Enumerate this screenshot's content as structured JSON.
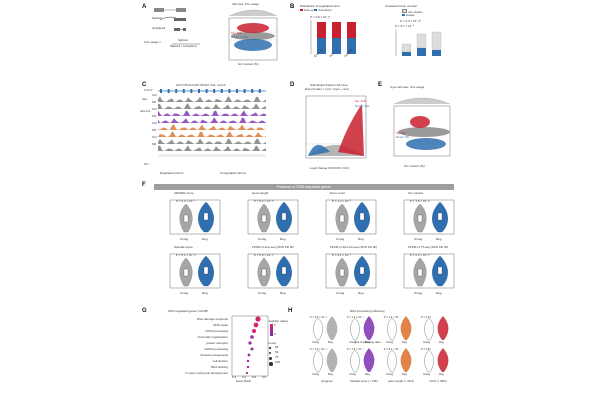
{
  "panels": {
    "a": "A",
    "b": "B",
    "c": "C",
    "d": "D",
    "e": "E",
    "f": "F",
    "g": "G",
    "h": "H"
  },
  "panel_a": {
    "spliced": "Spliced",
    "unspliced": "Unspliced",
    "usage_label": "3'ss usage =",
    "numerator": "Spliced",
    "denominator": "Spliced + Unspliced",
    "scatter_title": "4sU seq: 3'ss usage",
    "up": "Up: 709",
    "down": "Down: 1,079",
    "xlabel": "GC content (%)",
    "ylabel": "Log2 change (SON KD/Ctrl)"
  },
  "panel_b": {
    "title_left": "Distribution of regulated intron",
    "title_right": "Clustered intron number",
    "legend_up": "3'ss-up",
    "legend_down": "3'ss-down",
    "legend_cluster": "non-cluster",
    "legend_cluster2": "cluster",
    "p_left": "P = 4.8 × 10⁻²³",
    "p_right1": "P = 3.7 × 10⁻⁹",
    "p_right2": "P = 3.3 × 10⁻¹²⁰",
    "ylabel_left": "Ratio of SON regulated introns (%)",
    "ylabel_right": "Number of introns",
    "x1": "Exon ss",
    "x2": "4sU",
    "x3": "4sU-KA",
    "ticks_left": [
      "0",
      "50",
      "100"
    ],
    "ticks_right": [
      "0",
      "2,000",
      "4,000",
      "6,000"
    ]
  },
  "panel_c": {
    "locus": "chr17:56,613,607-56,627,141, mm10",
    "gene": "Lrrc17",
    "tracks": [
      "Ctrl",
      "KD",
      "Ctrl",
      "KD",
      "Ctrl",
      "KD",
      "Ctrl",
      "KD"
    ],
    "group1": "4sU",
    "group2": "4sU-KA",
    "gc_row": "GC",
    "x_left": "Regulated introns",
    "x_right": "Unregulated introns",
    "ticks": [
      "17",
      "16",
      "15"
    ]
  },
  "panel_d": {
    "title": "Subcellular fraction 4sU-seq",
    "subtitle": "Export index = cyto / (cyto + nuc)",
    "up": "Up: 418",
    "down": "Down: 120",
    "xlabel": "Log2 change (SON KD / Ctrl)",
    "ylabel": "-Log10 P value"
  },
  "panel_e": {
    "title": "Cyto-4sU-seq, 3'ss usage",
    "up": "Up: 52",
    "down": "Down: 99",
    "xlabel": "GC content (%)",
    "ylabel": "Log2 change (SON KD/Ctrl)"
  },
  "panel_f": {
    "banner": "Features of SON-regulated genes",
    "plots": [
      {
        "title": "CRISPR score",
        "p": "P = 5.3 × 10⁻⁹"
      },
      {
        "title": "Gene length",
        "p": "P = 5.3 × 10⁻¹⁴"
      },
      {
        "title": "Exon count",
        "p": "P = 1.3 × 10⁻⁸"
      },
      {
        "title": "GC content",
        "p": "P = 1.5 × 10⁻¹²"
      },
      {
        "title": "Speckle score",
        "p": "P = 6.1 × 10⁻¹¹"
      },
      {
        "title": "FPKM of 4sU-seq (SON KD 3h)",
        "p": "P = 5.9 × 10⁻¹⁰"
      },
      {
        "title": "FPKM of 4sU-KA-seq (SON KD 3h)",
        "p": "P = 3.1 × 10⁻⁵"
      },
      {
        "title": "FPKM of TT-seq (SON KD 3h)",
        "p": "P = 2.4 × 10⁻¹⁴"
      }
    ],
    "x_unreg": "Unreg",
    "x_reg": "Reg"
  },
  "panel_g": {
    "title": "SON regulated genes: GO-BP",
    "terms": [
      "DNA damage response",
      "DNA repair",
      "rRNA processing",
      "chromatin organization",
      "protein transport",
      "mRNA processing",
      "ribosome biogenesis",
      "cell division",
      "RNA splicing",
      "in utero embryonic development"
    ],
    "xlabel": "Gene Ratio",
    "xticks": [
      "0.3",
      "0.4",
      "0.5",
      "0.6"
    ],
    "legend_color_title": "-log10(p value)",
    "legend_color_ticks": [
      "6",
      "3"
    ],
    "legend_size_title": "Count",
    "legend_size_ticks": [
      "25",
      "50",
      "75",
      "100"
    ]
  },
  "panel_h": {
    "title_top": "RNA processing efficiency",
    "title_mid": "Pol II traveling ratio",
    "ylabel_top": "Processing efficiency (4sU-KA / TT-seq)",
    "ylabel_bottom": "Pol II traveling ratio",
    "p_top": [
      "P = 2.9 × 10⁻²⁵",
      "P = 1.1 × 10⁻¹⁴",
      "P = 1.3 × 10⁻⁴",
      "P = 0.13"
    ],
    "p_bottom": [
      "P = 1.3 × 10⁻¹⁵",
      "P = 7.5 × 10⁻⁹",
      "P = 8.1 × 10⁻⁴",
      "P = 0.87"
    ],
    "groups": [
      "All genes",
      "Speckle score (> 13th)",
      "gene length (> 23rd)",
      "GC% (> 50th)"
    ],
    "x_unreg": "Unreg",
    "x_reg": "Reg"
  },
  "colors": {
    "blue": "#2f6fb0",
    "red": "#c8202e",
    "gray": "#a6a6a6",
    "orange": "#d9702a",
    "magenta": "#d6246e",
    "purple": "#7b2fb0"
  }
}
